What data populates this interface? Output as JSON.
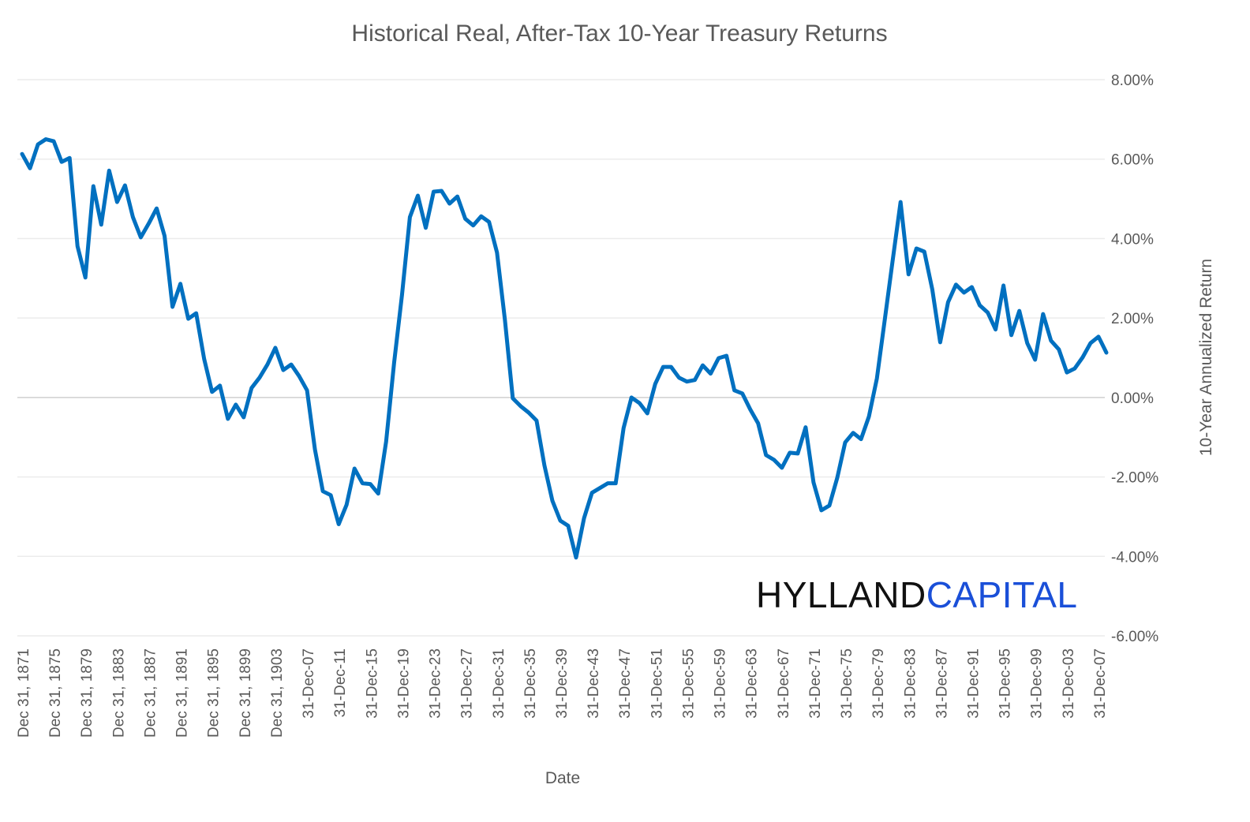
{
  "chart_data": {
    "type": "line",
    "title": "Historical Real, After-Tax 10-Year Treasury Returns",
    "xlabel": "Date",
    "ylabel": "10-Year Annualized Return",
    "brand": "HYLLAND",
    "brand_accent": "CAPITAL",
    "color": "#0070c0",
    "grid": true,
    "y_axis_side": "right",
    "categories": [
      "Dec 31, 1871",
      null,
      null,
      null,
      "Dec 31, 1875",
      null,
      null,
      null,
      "Dec 31, 1879",
      null,
      null,
      null,
      "Dec 31, 1883",
      null,
      null,
      null,
      "Dec 31, 1887",
      null,
      null,
      null,
      "Dec 31, 1891",
      null,
      null,
      null,
      "Dec 31, 1895",
      null,
      null,
      null,
      "Dec 31, 1899",
      null,
      null,
      null,
      "Dec 31, 1903",
      null,
      null,
      null,
      "31-Dec-07",
      null,
      null,
      null,
      "31-Dec-11",
      null,
      null,
      null,
      "31-Dec-15",
      null,
      null,
      null,
      "31-Dec-19",
      null,
      null,
      null,
      "31-Dec-23",
      null,
      null,
      null,
      "31-Dec-27",
      null,
      null,
      null,
      "31-Dec-31",
      null,
      null,
      null,
      "31-Dec-35",
      null,
      null,
      null,
      "31-Dec-39",
      null,
      null,
      null,
      "31-Dec-43",
      null,
      null,
      null,
      "31-Dec-47",
      null,
      null,
      null,
      "31-Dec-51",
      null,
      null,
      null,
      "31-Dec-55",
      null,
      null,
      null,
      "31-Dec-59",
      null,
      null,
      null,
      "31-Dec-63",
      null,
      null,
      null,
      "31-Dec-67",
      null,
      null,
      null,
      "31-Dec-71",
      null,
      null,
      null,
      "31-Dec-75",
      null,
      null,
      null,
      "31-Dec-79",
      null,
      null,
      null,
      "31-Dec-83",
      null,
      null,
      null,
      "31-Dec-87",
      null,
      null,
      null,
      "31-Dec-91",
      null,
      null,
      null,
      "31-Dec-95",
      null,
      null,
      null,
      "31-Dec-99",
      null,
      null,
      null,
      "31-Dec-03",
      null,
      null,
      null,
      "31-Dec-07",
      null
    ],
    "values": [
      6.13,
      5.77,
      6.37,
      6.5,
      6.45,
      5.93,
      6.03,
      3.81,
      3.02,
      5.32,
      4.35,
      5.71,
      4.92,
      5.34,
      4.54,
      4.03,
      4.38,
      4.76,
      4.07,
      2.28,
      2.86,
      1.98,
      2.12,
      0.97,
      0.14,
      0.3,
      -0.54,
      -0.18,
      -0.5,
      0.24,
      0.5,
      0.83,
      1.25,
      0.69,
      0.83,
      0.54,
      0.18,
      -1.31,
      -2.36,
      -2.46,
      -3.19,
      -2.7,
      -1.79,
      -2.16,
      -2.18,
      -2.42,
      -1.11,
      0.87,
      2.58,
      4.54,
      5.08,
      4.27,
      5.18,
      5.2,
      4.88,
      5.06,
      4.5,
      4.33,
      4.56,
      4.42,
      3.65,
      1.96,
      -0.02,
      -0.22,
      -0.38,
      -0.58,
      -1.71,
      -2.6,
      -3.1,
      -3.23,
      -4.03,
      -3.04,
      -2.4,
      -2.28,
      -2.16,
      -2.16,
      -0.77,
      0,
      -0.14,
      -0.4,
      0.34,
      0.77,
      0.77,
      0.5,
      0.4,
      0.44,
      0.81,
      0.6,
      0.99,
      1.05,
      0.18,
      0.1,
      -0.3,
      -0.65,
      -1.45,
      -1.57,
      -1.77,
      -1.39,
      -1.41,
      -0.75,
      -2.14,
      -2.84,
      -2.72,
      -2.02,
      -1.13,
      -0.89,
      -1.05,
      -0.48,
      0.48,
      1.96,
      3.45,
      4.92,
      3.1,
      3.75,
      3.67,
      2.72,
      1.39,
      2.4,
      2.84,
      2.64,
      2.78,
      2.32,
      2.14,
      1.71,
      2.82,
      1.57,
      2.18,
      1.37,
      0.95,
      2.1,
      1.43,
      1.21,
      0.63,
      0.73,
      1.01,
      1.37,
      1.53,
      1.13
    ],
    "ylim": [
      -6,
      8
    ],
    "yticks": [
      {
        "value": -6,
        "label": "-6.00%"
      },
      {
        "value": -4,
        "label": "-4.00%"
      },
      {
        "value": -2,
        "label": "-2.00%"
      },
      {
        "value": 0,
        "label": "0.00%"
      },
      {
        "value": 2,
        "label": "2.00%"
      },
      {
        "value": 4,
        "label": "4.00%"
      },
      {
        "value": 6,
        "label": "6.00%"
      },
      {
        "value": 8,
        "label": "8.00%"
      }
    ]
  }
}
